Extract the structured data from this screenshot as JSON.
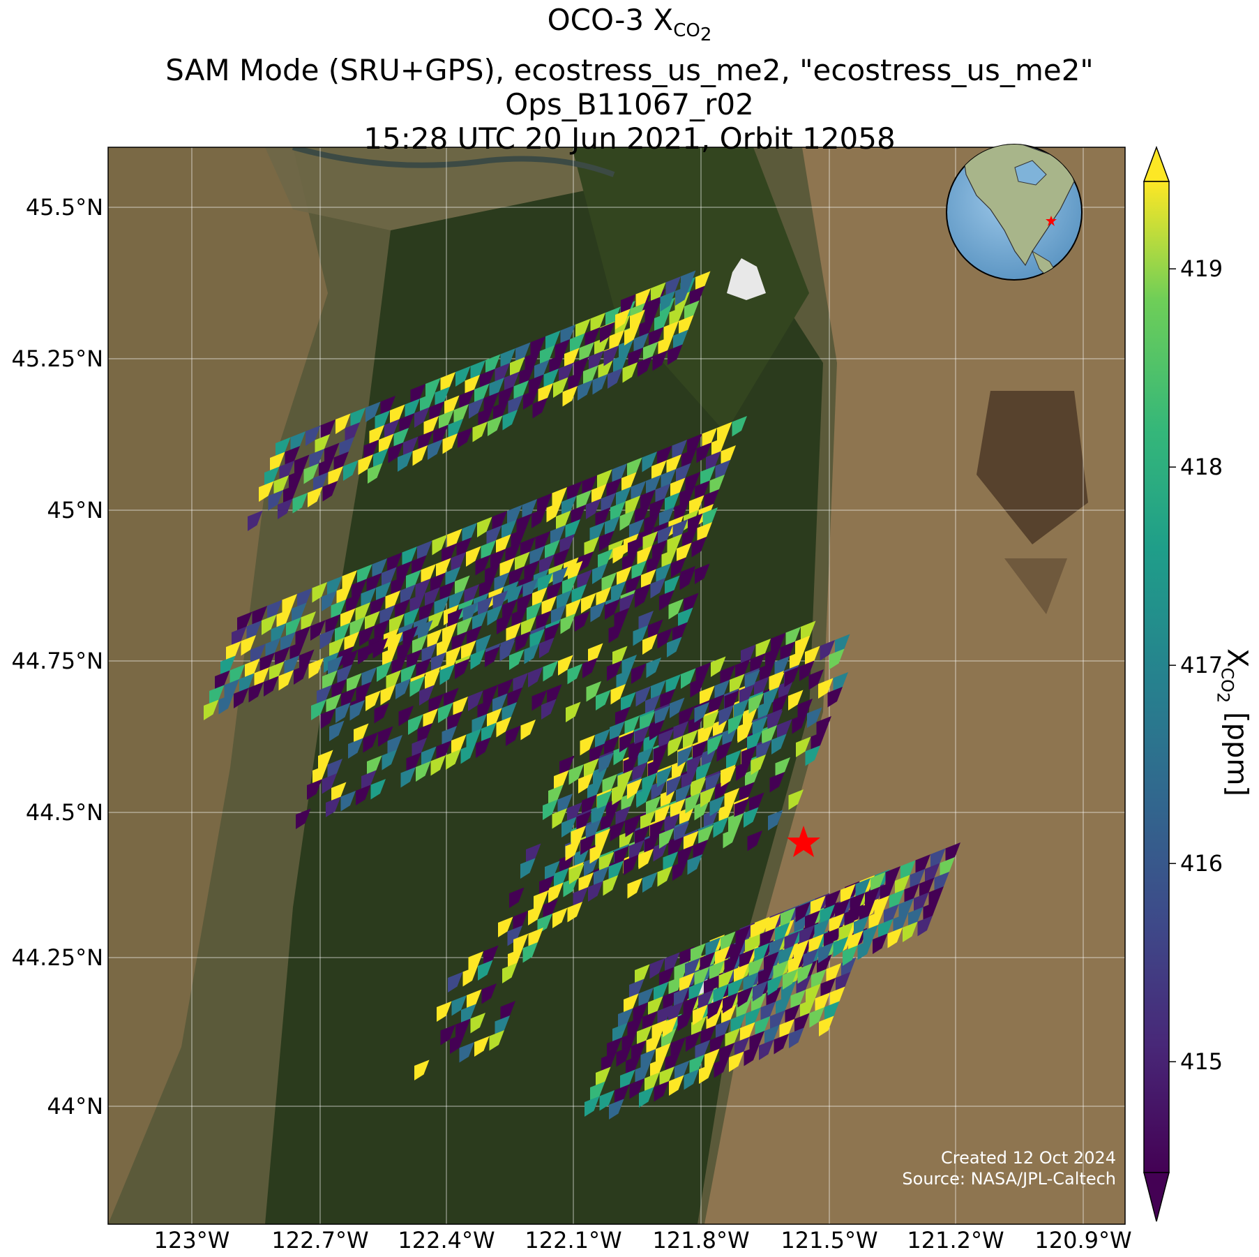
{
  "title": {
    "line1_main": "OCO-3 X",
    "line1_sub": "CO",
    "line1_subsub": "2",
    "line2": "SAM Mode (SRU+GPS), ecostress_us_me2, \"ecostress_us_me2\"",
    "line3": "Ops_B11067_r02",
    "line4": "15:28 UTC 20 Jun 2021, Orbit 12058"
  },
  "map": {
    "lat_ticks": [
      "45.5°N",
      "45.25°N",
      "45°N",
      "44.75°N",
      "44.5°N",
      "44.25°N",
      "44°N"
    ],
    "lon_ticks": [
      "123°W",
      "122.7°W",
      "122.4°W",
      "122.1°W",
      "121.8°W",
      "121.5°W",
      "121.2°W",
      "120.9°W"
    ],
    "background": "satellite imagery",
    "target_marker": {
      "symbol": "star",
      "color": "#ff0000",
      "lon": -121.55,
      "lat": 44.45
    },
    "inset_globe": {
      "marker_color": "#ff0000",
      "ocean_color": "#7fb3d9"
    }
  },
  "colorbar": {
    "label_main": "X",
    "label_sub": "CO",
    "label_subsub": "2",
    "label_unit": " [ppm]",
    "ticks": [
      "419",
      "418",
      "417",
      "416",
      "415"
    ],
    "tick_values": [
      419,
      418,
      417,
      416,
      415
    ],
    "vmin": 414.3,
    "vmax": 419.3,
    "colormap": "viridis",
    "extend": "both"
  },
  "credit": {
    "line1": "Created 12 Oct 2024",
    "line2": "Source: NASA/JPL-Caltech"
  },
  "colors": {
    "viridis_low": "#440154",
    "viridis_mid": "#21918c",
    "viridis_high": "#fde725",
    "marker": "#ff0000"
  }
}
